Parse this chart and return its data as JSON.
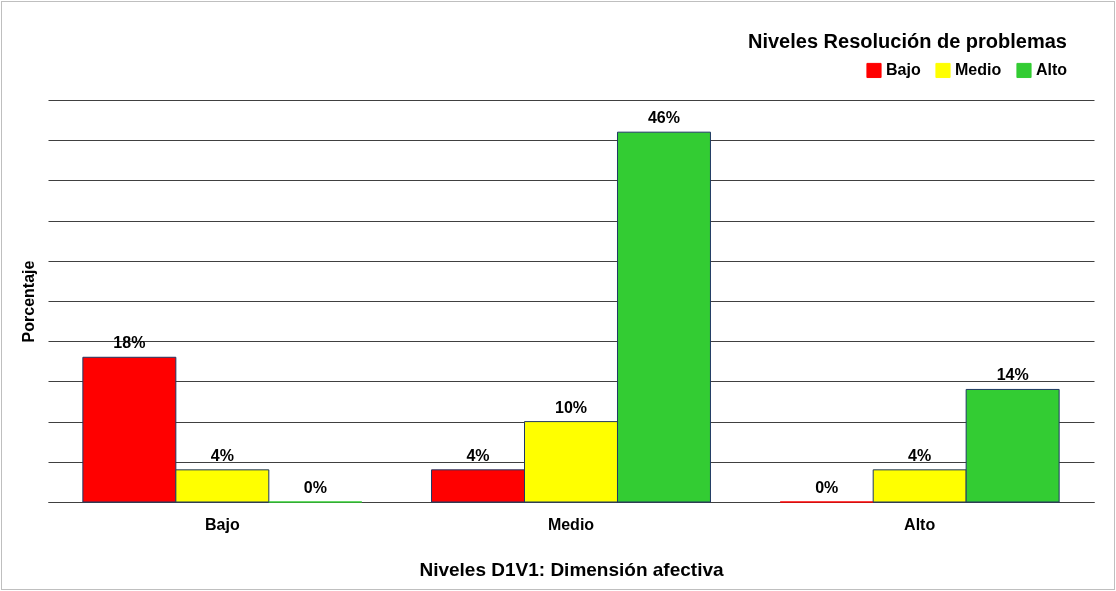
{
  "chart_data": {
    "type": "bar",
    "legend_title": "Niveles Resolución de problemas",
    "xlabel": "Niveles D1V1: Dimensión afectiva",
    "ylabel": "Porcentaje",
    "categories": [
      "Bajo",
      "Medio",
      "Alto"
    ],
    "series": [
      {
        "name": "Bajo",
        "color": "#ff0000",
        "values": [
          18,
          4,
          0
        ],
        "value_labels": [
          "18%",
          "4%",
          "0%"
        ]
      },
      {
        "name": "Medio",
        "color": "#ffff00",
        "values": [
          4,
          10,
          4
        ],
        "value_labels": [
          "4%",
          "10%",
          "4%"
        ]
      },
      {
        "name": "Alto",
        "color": "#33cc33",
        "values": [
          0,
          46,
          14
        ],
        "value_labels": [
          "0%",
          "46%",
          "14%"
        ]
      }
    ],
    "ylim": [
      0,
      50
    ],
    "yticks": [
      {
        "value": 0,
        "label": null
      },
      {
        "value": 5,
        "label": null
      },
      {
        "value": 10,
        "label": null
      },
      {
        "value": 15,
        "label": null
      },
      {
        "value": 20,
        "label": null
      },
      {
        "value": 25,
        "label": null
      },
      {
        "value": 30,
        "label": null
      },
      {
        "value": 35,
        "label": null
      },
      {
        "value": 40,
        "label": null
      },
      {
        "value": 45,
        "label": null
      },
      {
        "value": 50,
        "label": null
      }
    ],
    "tick_labels": "x",
    "grid": "y",
    "legend": "top right"
  }
}
